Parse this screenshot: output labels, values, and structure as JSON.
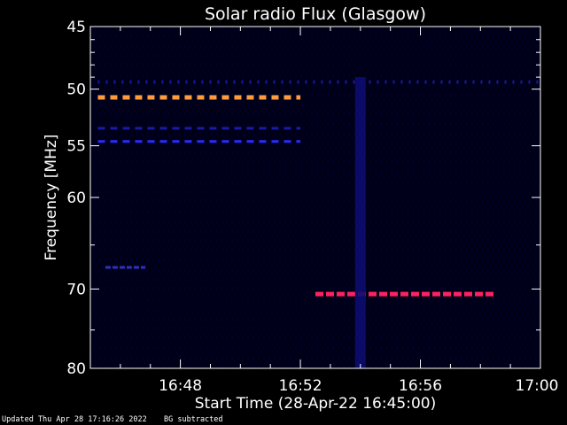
{
  "chart_data": {
    "type": "heatmap",
    "title": "Solar radio Flux (Glasgow)",
    "xlabel": "Start Time (28-Apr-22 16:45:00)",
    "ylabel": "Frequency [MHz]",
    "x_ticks": [
      "16:48",
      "16:52",
      "16:56",
      "17:00"
    ],
    "y_ticks": [
      "45",
      "50",
      "55",
      "60",
      "70",
      "80"
    ],
    "x_range_minutes_after_16_45": [
      0,
      15
    ],
    "y_range_mhz": [
      45,
      80
    ],
    "y_scale": "log",
    "features": [
      {
        "kind": "dashed-line",
        "freq_mhz": 50.7,
        "t_start": "16:45:15",
        "t_end": "16:52:00",
        "color": "#ff9a40"
      },
      {
        "kind": "dashed-line",
        "freq_mhz": 54.6,
        "t_start": "16:45:15",
        "t_end": "16:52:00",
        "color": "#2a2aff"
      },
      {
        "kind": "dashed-line",
        "freq_mhz": 53.4,
        "t_start": "16:45:15",
        "t_end": "16:52:00",
        "color": "#1a1aa8"
      },
      {
        "kind": "dotted-line",
        "freq_mhz": 49.4,
        "t_start": "16:45:15",
        "t_end": "17:00:00",
        "color": "#1818a0"
      },
      {
        "kind": "dashed-line",
        "freq_mhz": 70.6,
        "t_start": "16:52:30",
        "t_end": "16:58:30",
        "color": "#ff2060"
      },
      {
        "kind": "burst-column",
        "t_center": "16:54:00",
        "freq_range_mhz": [
          49,
          80
        ],
        "color": "#0c0c70"
      },
      {
        "kind": "band",
        "freq_mhz": 67.5,
        "t_start": "16:45:30",
        "t_end": "16:46:50",
        "color": "#3030c0"
      }
    ]
  },
  "footer": {
    "updated": "Updated Thu Apr 28 17:16:26 2022",
    "note": "BG subtracted"
  }
}
